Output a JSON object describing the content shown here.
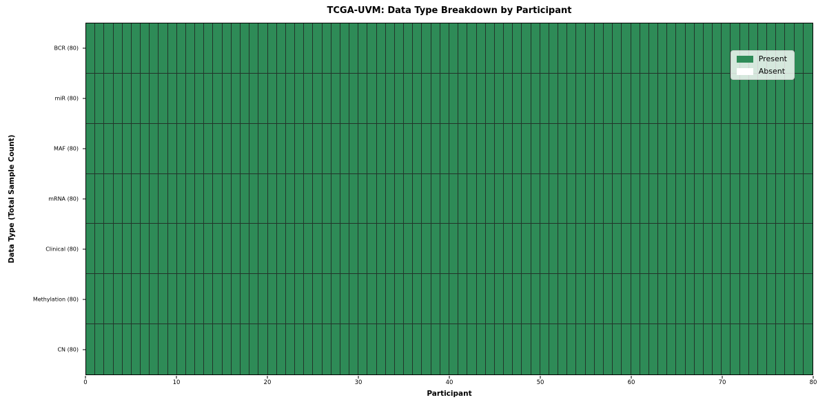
{
  "chart_data": {
    "type": "heatmap",
    "title": "TCGA-UVM: Data Type Breakdown by Participant",
    "xlabel": "Participant",
    "ylabel": "Data Type (Total Sample Count)",
    "n_participants": 80,
    "xlim": [
      0,
      80
    ],
    "x_ticks": [
      0,
      10,
      20,
      30,
      40,
      50,
      60,
      70,
      80
    ],
    "rows": [
      {
        "label": "BCR (80)",
        "data_type": "BCR",
        "total_samples": 80,
        "present_count": 80,
        "absent_count": 0
      },
      {
        "label": "miR (80)",
        "data_type": "miR",
        "total_samples": 80,
        "present_count": 80,
        "absent_count": 0
      },
      {
        "label": "MAF (80)",
        "data_type": "MAF",
        "total_samples": 80,
        "present_count": 80,
        "absent_count": 0
      },
      {
        "label": "mRNA (80)",
        "data_type": "mRNA",
        "total_samples": 80,
        "present_count": 80,
        "absent_count": 0
      },
      {
        "label": "Clinical (80)",
        "data_type": "Clinical",
        "total_samples": 80,
        "present_count": 80,
        "absent_count": 0
      },
      {
        "label": "Methylation (80)",
        "data_type": "Methylation",
        "total_samples": 80,
        "present_count": 80,
        "absent_count": 0
      },
      {
        "label": "CN (80)",
        "data_type": "CN",
        "total_samples": 80,
        "present_count": 80,
        "absent_count": 0
      }
    ],
    "all_cells_present": true,
    "legend": {
      "position": "upper right",
      "entries": [
        {
          "label": "Present",
          "color": "#2e8b57"
        },
        {
          "label": "Absent",
          "color": "#ffffff"
        }
      ]
    },
    "colors": {
      "present": "#2e8b57",
      "absent": "#ffffff",
      "cell_edge": "#22342a",
      "frame": "#000000"
    }
  }
}
